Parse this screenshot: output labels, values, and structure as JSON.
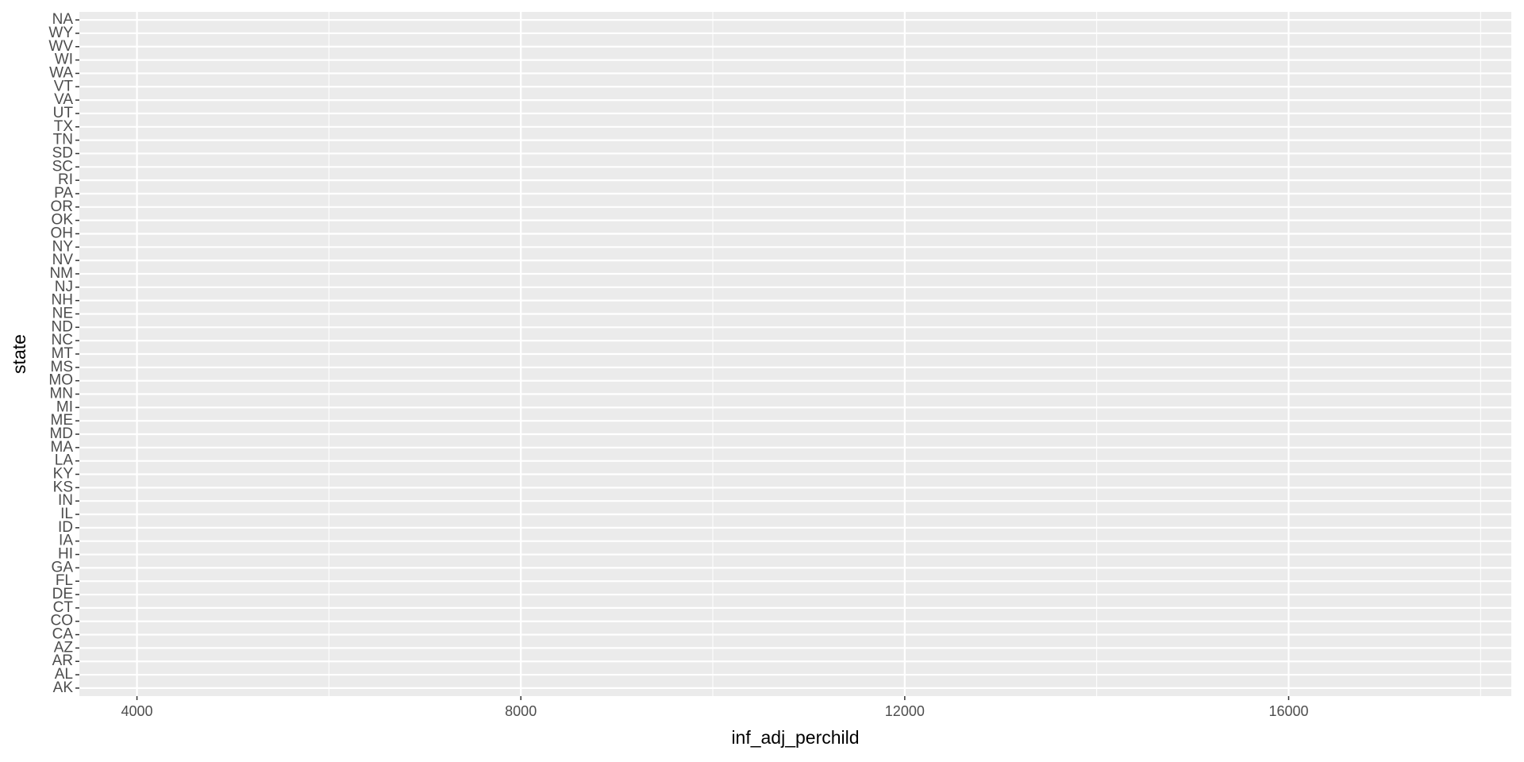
{
  "chart_data": {
    "type": "scatter",
    "x_label": "inf_adj_perchild",
    "y_label": "state",
    "categories": [
      "AK",
      "AL",
      "AR",
      "AZ",
      "CA",
      "CO",
      "CT",
      "DE",
      "FL",
      "GA",
      "HI",
      "IA",
      "ID",
      "IL",
      "IN",
      "KS",
      "KY",
      "LA",
      "MA",
      "MD",
      "ME",
      "MI",
      "MN",
      "MO",
      "MS",
      "MT",
      "NC",
      "ND",
      "NE",
      "NH",
      "NJ",
      "NM",
      "NV",
      "NY",
      "OH",
      "OK",
      "OR",
      "PA",
      "RI",
      "SC",
      "SD",
      "TN",
      "TX",
      "UT",
      "VA",
      "VT",
      "WA",
      "WI",
      "WV",
      "WY",
      "NA"
    ],
    "xlim": [
      3400,
      18320
    ],
    "xticks": [
      4000,
      8000,
      12000,
      16000
    ],
    "grid": true,
    "panel_color": "#ebebeb"
  }
}
